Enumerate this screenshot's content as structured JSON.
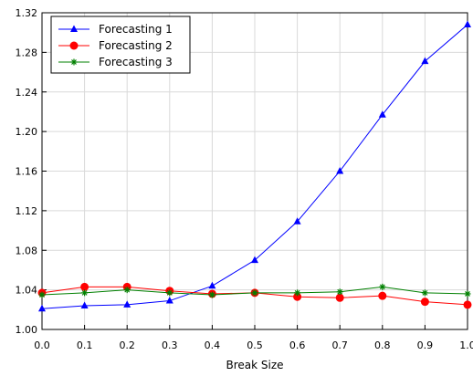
{
  "chart_data": {
    "type": "line",
    "title": "",
    "xlabel": "Break Size",
    "ylabel": "",
    "xlim": [
      0.0,
      1.0
    ],
    "ylim": [
      1.0,
      1.32
    ],
    "grid": true,
    "legend_position": "top-left",
    "x": [
      0.0,
      0.1,
      0.2,
      0.3,
      0.4,
      0.5,
      0.6,
      0.7,
      0.8,
      0.9,
      1.0
    ],
    "xticks": [
      "0.0",
      "0.1",
      "0.2",
      "0.3",
      "0.4",
      "0.5",
      "0.6",
      "0.7",
      "0.8",
      "0.9",
      "1.0"
    ],
    "yticks": [
      "1.00",
      "1.04",
      "1.08",
      "1.12",
      "1.16",
      "1.20",
      "1.24",
      "1.28",
      "1.32"
    ],
    "series": [
      {
        "name": "Forecasting 1",
        "color": "#0000ff",
        "marker": "triangle",
        "values": [
          1.021,
          1.024,
          1.025,
          1.029,
          1.044,
          1.07,
          1.109,
          1.16,
          1.217,
          1.271,
          1.308
        ]
      },
      {
        "name": "Forecasting 2",
        "color": "#ff0000",
        "marker": "circle",
        "values": [
          1.037,
          1.043,
          1.043,
          1.039,
          1.036,
          1.037,
          1.033,
          1.032,
          1.034,
          1.028,
          1.025
        ]
      },
      {
        "name": "Forecasting 3",
        "color": "#008000",
        "marker": "star",
        "values": [
          1.035,
          1.037,
          1.04,
          1.037,
          1.035,
          1.037,
          1.037,
          1.038,
          1.043,
          1.037,
          1.036
        ]
      }
    ]
  }
}
